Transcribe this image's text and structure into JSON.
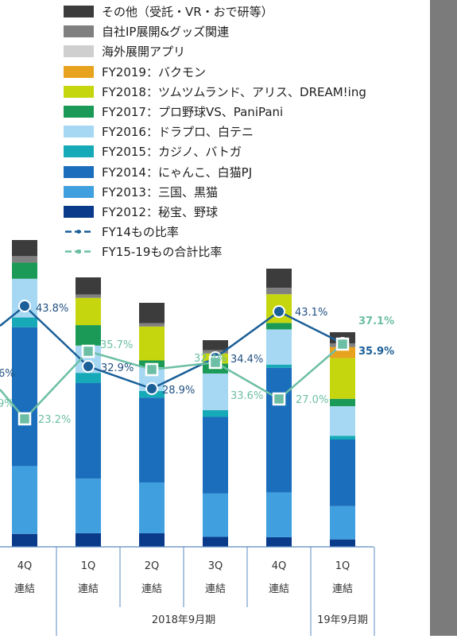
{
  "chart_data": {
    "type": "bar",
    "title": "",
    "xlabel": "",
    "ylabel": "",
    "categories": [
      {
        "quarter": "4Q",
        "unit": "連結"
      },
      {
        "quarter": "1Q",
        "unit": "連結"
      },
      {
        "quarter": "2Q",
        "unit": "連結"
      },
      {
        "quarter": "3Q",
        "unit": "連結"
      },
      {
        "quarter": "4Q",
        "unit": "連結"
      },
      {
        "quarter": "1Q",
        "unit": "連結"
      }
    ],
    "period_groups": [
      {
        "label": "2018年9月期"
      },
      {
        "label": "19年9月期"
      }
    ],
    "ylim": [
      0,
      100
    ],
    "series": [
      {
        "name": "FY2012：秘宝、野球",
        "color": "#0a3a8a",
        "values": [
          4,
          4,
          4,
          3,
          3,
          2
        ]
      },
      {
        "name": "FY2013：三国、黒猫",
        "color": "#3f9fdf",
        "values": [
          21,
          16,
          15,
          13,
          14,
          9
        ]
      },
      {
        "name": "FY2014：にゃんこ、白猫PJ",
        "color": "#1a6ebb",
        "values": [
          43,
          28,
          25,
          23,
          39,
          18
        ]
      },
      {
        "name": "FY2015：カジノ、バトガ",
        "color": "#16a9b7",
        "values": [
          3,
          3,
          2,
          2,
          1,
          1
        ]
      },
      {
        "name": "FY2016：ドラプロ、白テニ",
        "color": "#a7d8f3",
        "values": [
          12,
          8,
          7,
          11,
          11,
          8
        ]
      },
      {
        "name": "FY2017：プロ野球VS、PaniPani",
        "color": "#1a9a56",
        "values": [
          5,
          6,
          2,
          3,
          2,
          2
        ]
      },
      {
        "name": "FY2018：ツムツムランド、アリス、DREAM!ing",
        "color": "#c5d60e",
        "values": [
          0,
          8,
          10,
          3,
          9,
          11
        ]
      },
      {
        "name": "FY2019：バクモン",
        "color": "#e8a31e",
        "values": [
          0,
          0,
          0,
          0,
          0,
          3
        ]
      },
      {
        "name": "海外展開アプリ",
        "color": "#cfcfcf",
        "values": [
          0,
          0,
          0,
          0,
          0,
          0
        ]
      },
      {
        "name": "自社IP展開&グッズ関連",
        "color": "#808080",
        "values": [
          2,
          1,
          1,
          1,
          2,
          1
        ]
      },
      {
        "name": "その他（受託・VR・おで研等）",
        "color": "#3c3c3c",
        "values": [
          5,
          5,
          6,
          3,
          6,
          3
        ]
      }
    ],
    "lines": [
      {
        "name": "FY14もの比率",
        "color": "#1a5f98",
        "marker": "circle",
        "values": [
          43.8,
          32.9,
          28.9,
          34.4,
          43.1,
          35.9
        ],
        "labels": [
          "43.8%",
          "32.9%",
          "28.9%",
          "34.4%",
          "43.1%",
          "35.9%"
        ]
      },
      {
        "name": "FY15-19もの合計比率",
        "color": "#6cbea5",
        "marker": "square",
        "values": [
          23.2,
          35.7,
          32.4,
          33.6,
          27.0,
          37.1
        ],
        "labels": [
          "23.2%",
          "35.7%",
          "32.4%",
          "33.6%",
          "27.0%",
          "37.1%"
        ]
      }
    ],
    "cut_off_labels": {
      "fy14": "6%",
      "fy15_19": "9%"
    }
  }
}
